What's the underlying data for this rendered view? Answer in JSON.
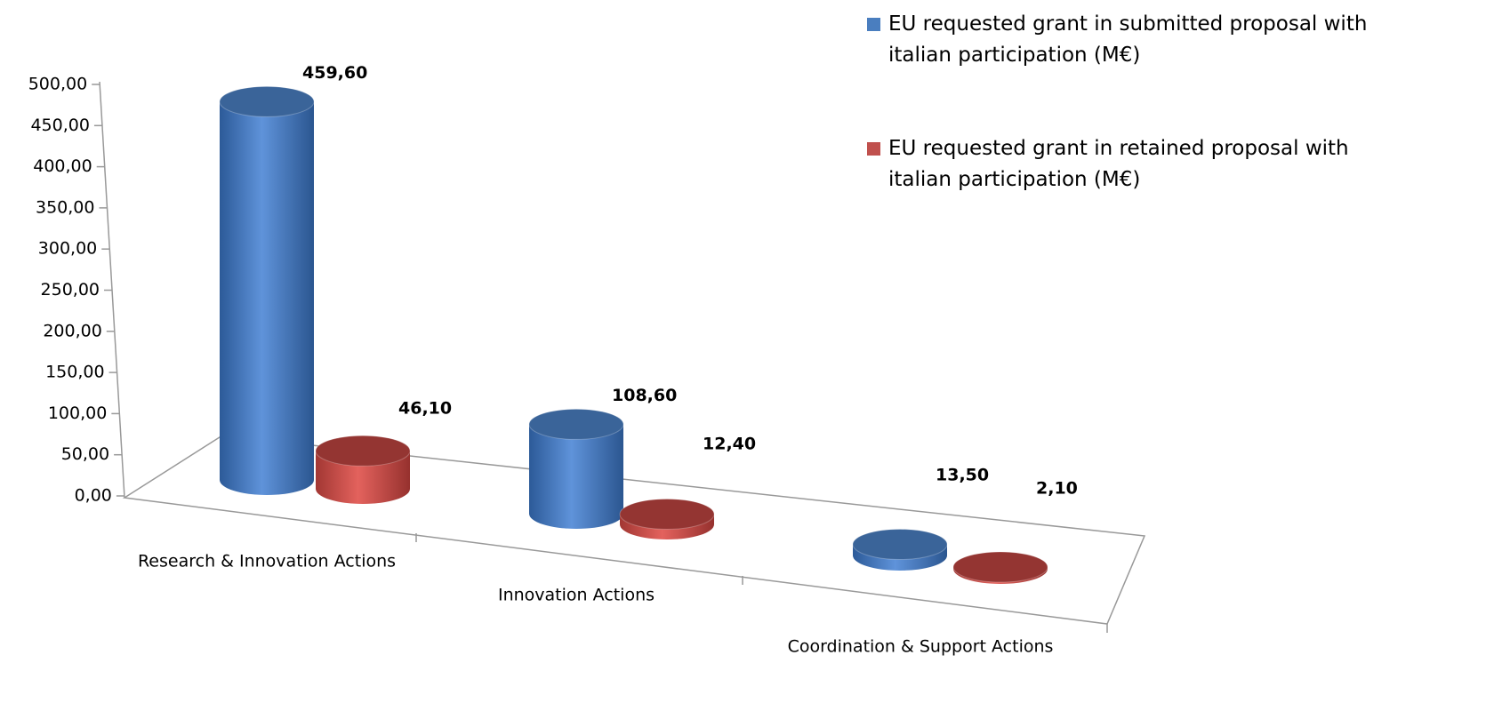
{
  "chart_data": {
    "type": "bar3d",
    "categories": [
      "Research & Innovation Actions",
      "Innovation Actions",
      "Coordination & Support Actions"
    ],
    "series": [
      {
        "name": "EU requested grant in submitted proposal with italian participation (M€)",
        "color": "#4a7ebf",
        "values": [
          459.6,
          108.6,
          13.5
        ],
        "value_labels": [
          "459,60",
          "108,60",
          "13,50"
        ]
      },
      {
        "name": "EU requested grant in retained proposal with italian participation (M€)",
        "color": "#c0504d",
        "values": [
          46.1,
          12.4,
          2.1
        ],
        "value_labels": [
          "46,10",
          "12,40",
          "2,10"
        ]
      }
    ],
    "ylim": [
      0,
      500
    ],
    "yticks": [
      {
        "value": 0,
        "label": "0,00"
      },
      {
        "value": 50,
        "label": "50,00"
      },
      {
        "value": 100,
        "label": "100,00"
      },
      {
        "value": 150,
        "label": "150,00"
      },
      {
        "value": 200,
        "label": "200,00"
      },
      {
        "value": 250,
        "label": "250,00"
      },
      {
        "value": 300,
        "label": "300,00"
      },
      {
        "value": 350,
        "label": "350,00"
      },
      {
        "value": 400,
        "label": "400,00"
      },
      {
        "value": 450,
        "label": "450,00"
      },
      {
        "value": 500,
        "label": "500,00"
      }
    ],
    "legend": "top-right"
  }
}
